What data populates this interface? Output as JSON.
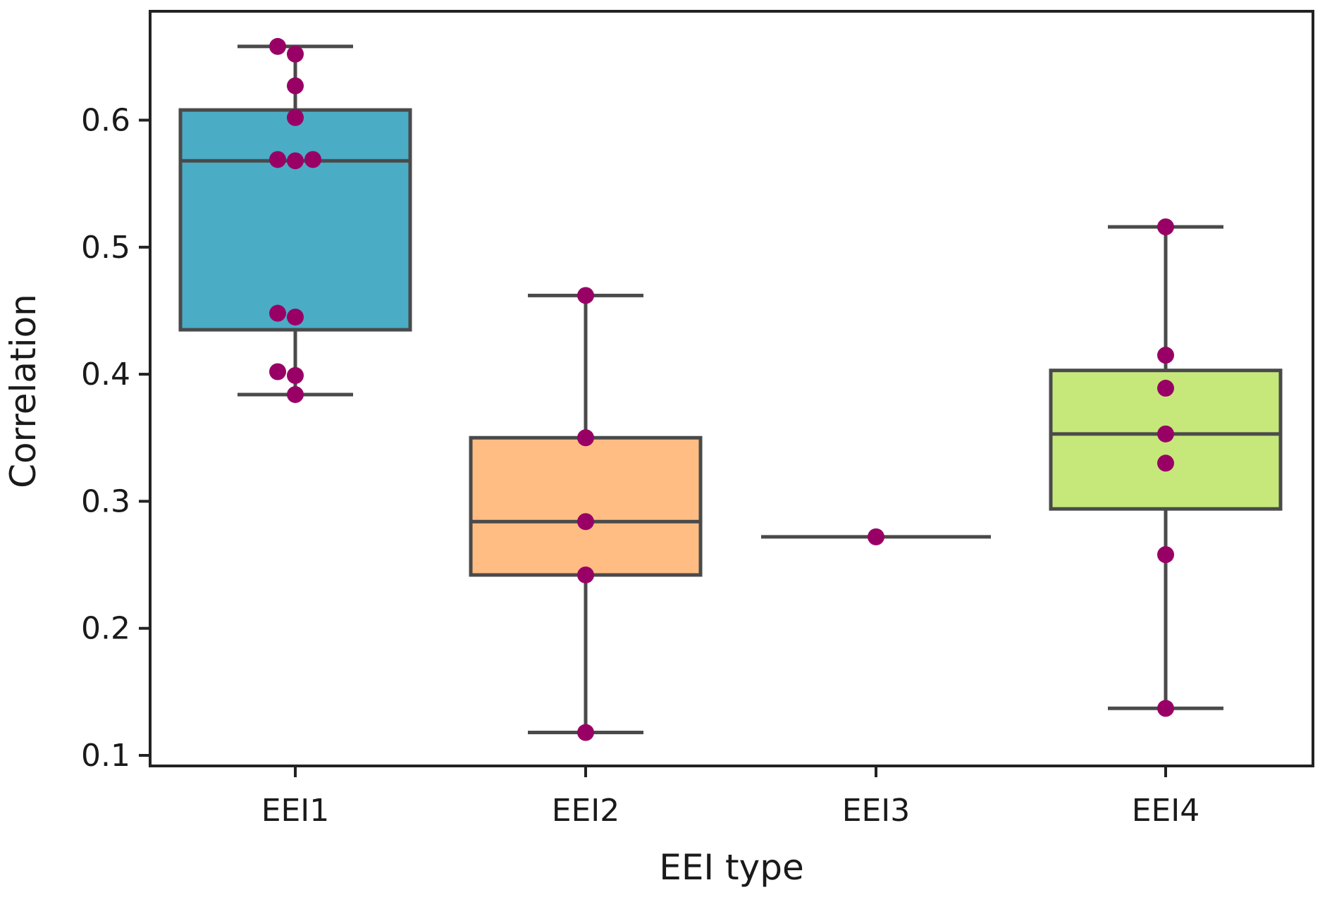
{
  "chart_data": {
    "type": "box",
    "title": "",
    "xlabel": "EEI type",
    "ylabel": "Correlation",
    "ylim": [
      0.09,
      0.685
    ],
    "yticks": [
      0.1,
      0.2,
      0.3,
      0.4,
      0.5,
      0.6
    ],
    "ytick_labels": [
      "0.1",
      "0.2",
      "0.3",
      "0.4",
      "0.5",
      "0.6"
    ],
    "categories": [
      "EEI1",
      "EEI2",
      "EEI3",
      "EEI4"
    ],
    "grid": false,
    "boxes": [
      {
        "category": "EEI1",
        "color": "#4bacc6",
        "q1": 0.435,
        "median": 0.568,
        "q3": 0.608,
        "whisker_low": 0.384,
        "whisker_high": 0.658,
        "points": [
          0.658,
          0.652,
          0.627,
          0.602,
          0.569,
          0.568,
          0.569,
          0.448,
          0.445,
          0.402,
          0.399,
          0.384
        ]
      },
      {
        "category": "EEI2",
        "color": "#ffbd84",
        "q1": 0.242,
        "median": 0.284,
        "q3": 0.35,
        "whisker_low": 0.118,
        "whisker_high": 0.462,
        "points": [
          0.462,
          0.35,
          0.284,
          0.242,
          0.118
        ]
      },
      {
        "category": "EEI3",
        "color": "#b0b0b0",
        "q1": 0.272,
        "median": 0.272,
        "q3": 0.272,
        "whisker_low": 0.272,
        "whisker_high": 0.272,
        "points": [
          0.272
        ]
      },
      {
        "category": "EEI4",
        "color": "#c6e87a",
        "q1": 0.294,
        "median": 0.353,
        "q3": 0.403,
        "whisker_low": 0.137,
        "whisker_high": 0.516,
        "points": [
          0.516,
          0.415,
          0.389,
          0.353,
          0.33,
          0.258,
          0.137
        ]
      }
    ],
    "point_color": "#990066",
    "line_color": "#4a4a4a"
  }
}
